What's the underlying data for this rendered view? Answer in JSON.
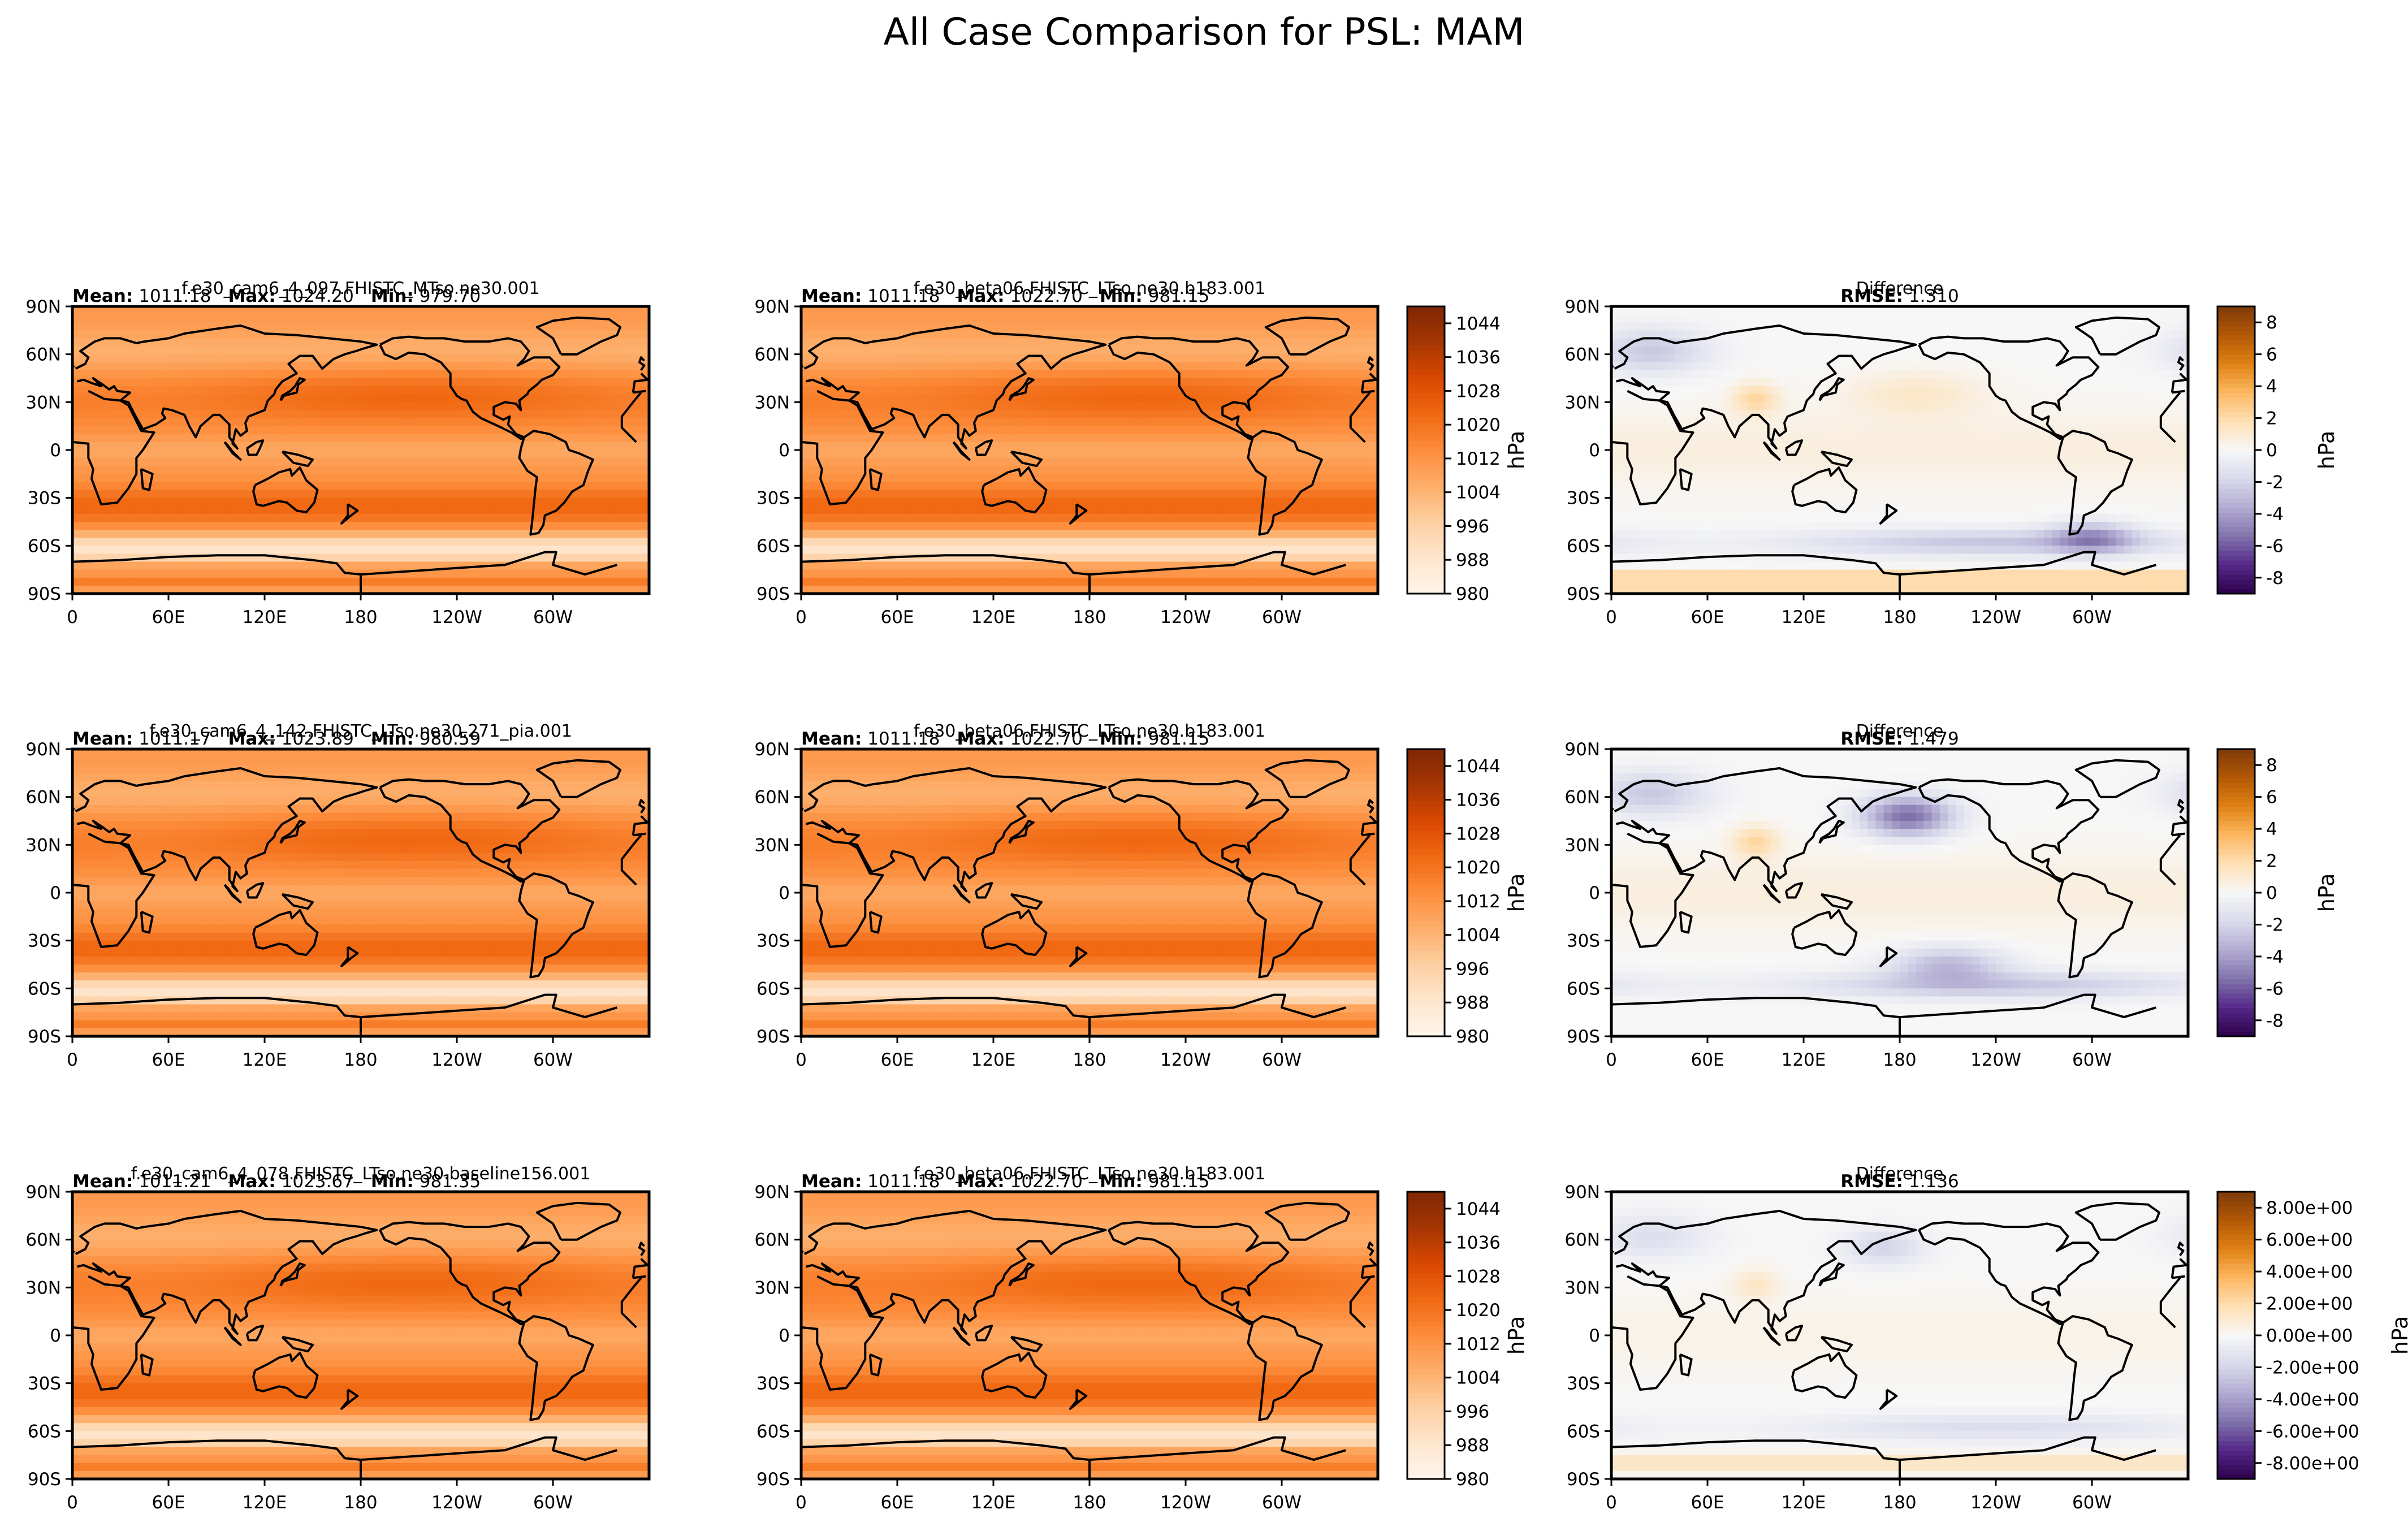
{
  "figure_title": "All Case Comparison for PSL: MAM",
  "colors": {
    "seq_cmap": [
      "#fff5eb",
      "#fee6ce",
      "#fdd0a2",
      "#fdae6b",
      "#fd8d3c",
      "#f16913",
      "#d94801",
      "#a63603",
      "#7f2704"
    ],
    "div_cmap": [
      "#2d004b",
      "#542788",
      "#8073ac",
      "#b2abd2",
      "#d8daeb",
      "#f7f7f7",
      "#fee0b6",
      "#fdb863",
      "#e08214",
      "#b35806",
      "#7f3b08"
    ],
    "coast": "#000000"
  },
  "chart_data": [
    {
      "type": "heatmap",
      "panel": "r1c1",
      "title": "f.e30_cam6_4_097.FHISTC_MTso.ne30.001",
      "stats": [
        {
          "label": "Mean:",
          "value": "1011.18"
        },
        {
          "label": "Max:",
          "value": "1024.20"
        },
        {
          "label": "Min:",
          "value": "979.70"
        }
      ],
      "x_ticks": [
        "0",
        "60E",
        "120E",
        "180",
        "120W",
        "60W"
      ],
      "y_ticks": [
        "90N",
        "60N",
        "30N",
        "0",
        "30S",
        "60S",
        "90S"
      ],
      "field": "psl",
      "vlim": [
        980,
        1048
      ]
    },
    {
      "type": "heatmap",
      "panel": "r1c2",
      "title": "f.e30_beta06.FHISTC_LTso.ne30.b183.001",
      "stats": [
        {
          "label": "Mean:",
          "value": "1011.18"
        },
        {
          "label": "Max:",
          "value": "1022.70"
        },
        {
          "label": "Min:",
          "value": "981.15"
        }
      ],
      "x_ticks": [
        "0",
        "60E",
        "120E",
        "180",
        "120W",
        "60W"
      ],
      "y_ticks": [
        "90N",
        "60N",
        "30N",
        "0",
        "30S",
        "60S",
        "90S"
      ],
      "field": "psl",
      "vlim": [
        980,
        1048
      ],
      "colorbar": {
        "ticks": [
          "980",
          "988",
          "996",
          "1004",
          "1012",
          "1020",
          "1028",
          "1036",
          "1044"
        ],
        "label": "hPa",
        "range": [
          980,
          1048
        ]
      }
    },
    {
      "type": "heatmap",
      "panel": "r1c3",
      "title": "Difference",
      "stats": [
        {
          "label": "RMSE:",
          "value": "1.310"
        }
      ],
      "x_ticks": [
        "0",
        "60E",
        "120E",
        "180",
        "120W",
        "60W"
      ],
      "y_ticks": [
        "90N",
        "60N",
        "30N",
        "0",
        "30S",
        "60S",
        "90S"
      ],
      "field": "diff",
      "variant": 1,
      "vlim": [
        -9,
        9
      ],
      "colorbar": {
        "ticks": [
          "-8",
          "-6",
          "-4",
          "-2",
          "0",
          "2",
          "4",
          "6",
          "8"
        ],
        "label": "hPa",
        "range": [
          -9,
          9
        ]
      }
    },
    {
      "type": "heatmap",
      "panel": "r2c1",
      "title": "f.e30_cam6_4_142.FHISTC_LTso.ne30.271_pia.001",
      "stats": [
        {
          "label": "Mean:",
          "value": "1011.17"
        },
        {
          "label": "Max:",
          "value": "1023.89"
        },
        {
          "label": "Min:",
          "value": "980.59"
        }
      ],
      "x_ticks": [
        "0",
        "60E",
        "120E",
        "180",
        "120W",
        "60W"
      ],
      "y_ticks": [
        "90N",
        "60N",
        "30N",
        "0",
        "30S",
        "60S",
        "90S"
      ],
      "field": "psl",
      "vlim": [
        980,
        1048
      ]
    },
    {
      "type": "heatmap",
      "panel": "r2c2",
      "title": "f.e30_beta06.FHISTC_LTso.ne30.b183.001",
      "stats": [
        {
          "label": "Mean:",
          "value": "1011.18"
        },
        {
          "label": "Max:",
          "value": "1022.70"
        },
        {
          "label": "Min:",
          "value": "981.15"
        }
      ],
      "x_ticks": [
        "0",
        "60E",
        "120E",
        "180",
        "120W",
        "60W"
      ],
      "y_ticks": [
        "90N",
        "60N",
        "30N",
        "0",
        "30S",
        "60S",
        "90S"
      ],
      "field": "psl",
      "vlim": [
        980,
        1048
      ],
      "colorbar": {
        "ticks": [
          "980",
          "988",
          "996",
          "1004",
          "1012",
          "1020",
          "1028",
          "1036",
          "1044"
        ],
        "label": "hPa",
        "range": [
          980,
          1048
        ]
      }
    },
    {
      "type": "heatmap",
      "panel": "r2c3",
      "title": "Difference",
      "stats": [
        {
          "label": "RMSE:",
          "value": "1.479"
        }
      ],
      "x_ticks": [
        "0",
        "60E",
        "120E",
        "180",
        "120W",
        "60W"
      ],
      "y_ticks": [
        "90N",
        "60N",
        "30N",
        "0",
        "30S",
        "60S",
        "90S"
      ],
      "field": "diff",
      "variant": 2,
      "vlim": [
        -9,
        9
      ],
      "colorbar": {
        "ticks": [
          "-8",
          "-6",
          "-4",
          "-2",
          "0",
          "2",
          "4",
          "6",
          "8"
        ],
        "label": "hPa",
        "range": [
          -9,
          9
        ]
      }
    },
    {
      "type": "heatmap",
      "panel": "r3c1",
      "title": "f.e30_cam6_4_078.FHISTC_LTso.ne30.baseline156.001",
      "stats": [
        {
          "label": "Mean:",
          "value": "1011.21"
        },
        {
          "label": "Max:",
          "value": "1023.67"
        },
        {
          "label": "Min:",
          "value": "981.35"
        }
      ],
      "x_ticks": [
        "0",
        "60E",
        "120E",
        "180",
        "120W",
        "60W"
      ],
      "y_ticks": [
        "90N",
        "60N",
        "30N",
        "0",
        "30S",
        "60S",
        "90S"
      ],
      "field": "psl",
      "vlim": [
        980,
        1048
      ]
    },
    {
      "type": "heatmap",
      "panel": "r3c2",
      "title": "f.e30_beta06.FHISTC_LTso.ne30.b183.001",
      "stats": [
        {
          "label": "Mean:",
          "value": "1011.18"
        },
        {
          "label": "Max:",
          "value": "1022.70"
        },
        {
          "label": "Min:",
          "value": "981.15"
        }
      ],
      "x_ticks": [
        "0",
        "60E",
        "120E",
        "180",
        "120W",
        "60W"
      ],
      "y_ticks": [
        "90N",
        "60N",
        "30N",
        "0",
        "30S",
        "60S",
        "90S"
      ],
      "field": "psl",
      "vlim": [
        980,
        1048
      ],
      "colorbar": {
        "ticks": [
          "980",
          "988",
          "996",
          "1004",
          "1012",
          "1020",
          "1028",
          "1036",
          "1044"
        ],
        "label": "hPa",
        "range": [
          980,
          1048
        ]
      }
    },
    {
      "type": "heatmap",
      "panel": "r3c3",
      "title": "Difference",
      "stats": [
        {
          "label": "RMSE:",
          "value": "1.136"
        }
      ],
      "x_ticks": [
        "0",
        "60E",
        "120E",
        "180",
        "120W",
        "60W"
      ],
      "y_ticks": [
        "90N",
        "60N",
        "30N",
        "0",
        "30S",
        "60S",
        "90S"
      ],
      "field": "diff",
      "variant": 3,
      "vlim": [
        -9,
        9
      ],
      "colorbar": {
        "ticks": [
          "-8.00e+00",
          "-6.00e+00",
          "-4.00e+00",
          "-2.00e+00",
          "0.00e+00",
          "2.00e+00",
          "4.00e+00",
          "6.00e+00",
          "8.00e+00"
        ],
        "label": "hPa",
        "range": [
          -9,
          9
        ]
      }
    }
  ]
}
